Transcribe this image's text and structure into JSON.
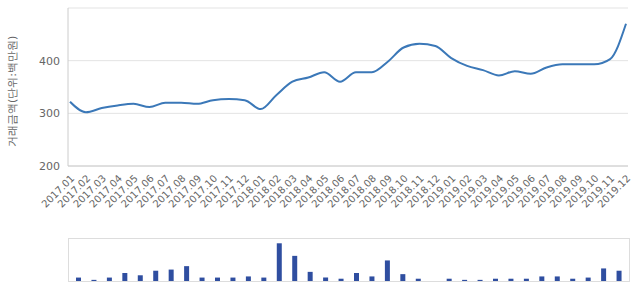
{
  "chart_data": [
    {
      "type": "line",
      "y_label": "거래금액(단위:백만원)",
      "categories": [
        "2017.01",
        "2017.02",
        "2017.03",
        "2017.04",
        "2017.05",
        "2017.06",
        "2017.07",
        "2017.08",
        "2017.09",
        "2017.10",
        "2017.11",
        "2017.12",
        "2018.01",
        "2018.02",
        "2018.03",
        "2018.04",
        "2018.05",
        "2018.06",
        "2018.07",
        "2018.08",
        "2018.09",
        "2018.10",
        "2018.11",
        "2018.12",
        "2019.01",
        "2019.02",
        "2019.03",
        "2019.04",
        "2019.05",
        "2019.06",
        "2019.07",
        "2019.08",
        "2019.09",
        "2019.10",
        "2019.11",
        "2019.12"
      ],
      "values": [
        322,
        302,
        310,
        315,
        318,
        312,
        320,
        320,
        318,
        325,
        327,
        325,
        308,
        335,
        360,
        368,
        378,
        360,
        378,
        378,
        398,
        425,
        432,
        428,
        405,
        390,
        382,
        372,
        380,
        375,
        387,
        393,
        393,
        393,
        403,
        470
      ],
      "color": "#3b78b8",
      "ylim": [
        200,
        500
      ],
      "yticks": [
        200,
        300,
        400
      ],
      "grid": true
    },
    {
      "type": "bar",
      "values": [
        3,
        1,
        3,
        7,
        5,
        9,
        10,
        13,
        3,
        3,
        3,
        4,
        3,
        33,
        22,
        8,
        3,
        2,
        7,
        4,
        18,
        6,
        2,
        0,
        2,
        1,
        1,
        2,
        2,
        2,
        4,
        4,
        2,
        3,
        11,
        9
      ],
      "color": "#2f4ea0",
      "ylim": [
        0,
        35
      ],
      "tick_labels": false
    }
  ]
}
